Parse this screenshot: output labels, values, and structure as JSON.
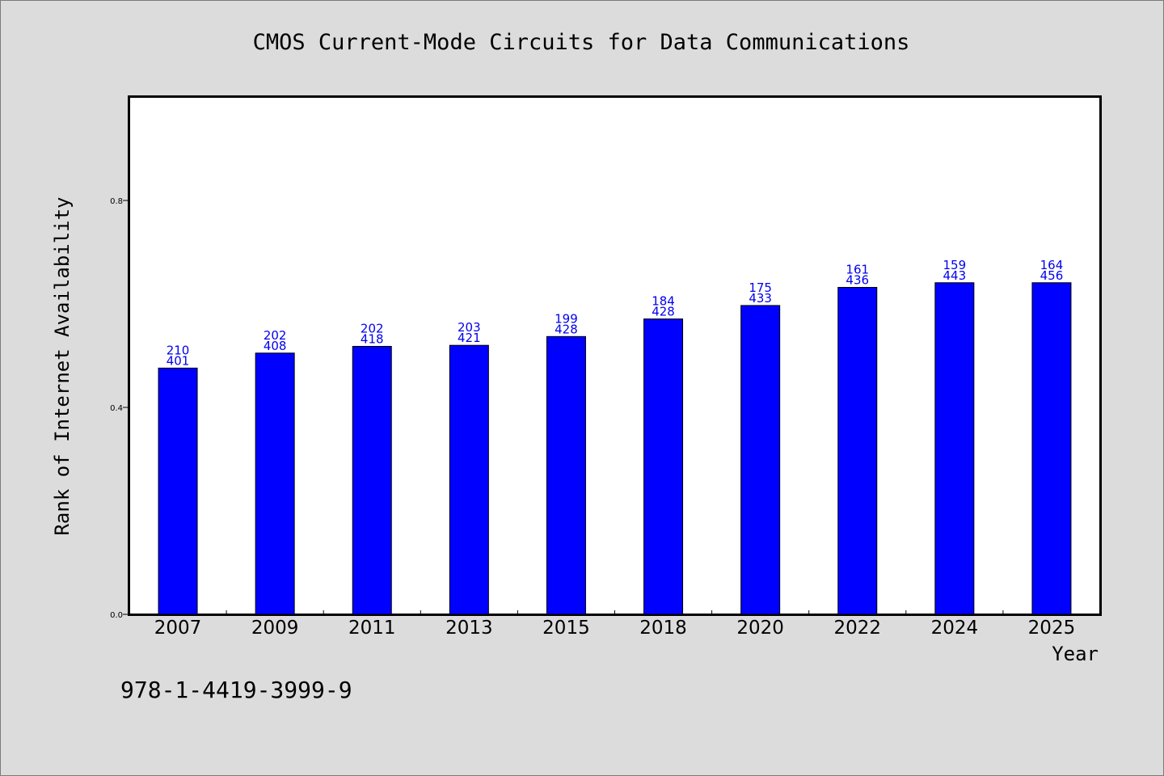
{
  "chart_data": {
    "type": "bar",
    "title": "CMOS Current-Mode Circuits for Data Communications",
    "xlabel": "Year",
    "ylabel": "Rank of Internet Availability",
    "ylim": [
      0,
      1
    ],
    "yticks": [
      "0.0",
      "0.4",
      "0.8"
    ],
    "grid": false,
    "bar_color": "#0000ff",
    "label_color": "#0000ee",
    "categories": [
      "2007",
      "2009",
      "2011",
      "2013",
      "2015",
      "2018",
      "2020",
      "2022",
      "2024",
      "2025"
    ],
    "values": [
      0.476,
      0.505,
      0.518,
      0.52,
      0.537,
      0.571,
      0.597,
      0.632,
      0.641,
      0.641
    ],
    "label_top": [
      "210",
      "202",
      "202",
      "203",
      "199",
      "184",
      "175",
      "161",
      "159",
      "164"
    ],
    "label_bottom": [
      "401",
      "408",
      "418",
      "421",
      "428",
      "428",
      "433",
      "436",
      "443",
      "456"
    ]
  },
  "footer": {
    "isbn": "978-1-4419-3999-9"
  }
}
